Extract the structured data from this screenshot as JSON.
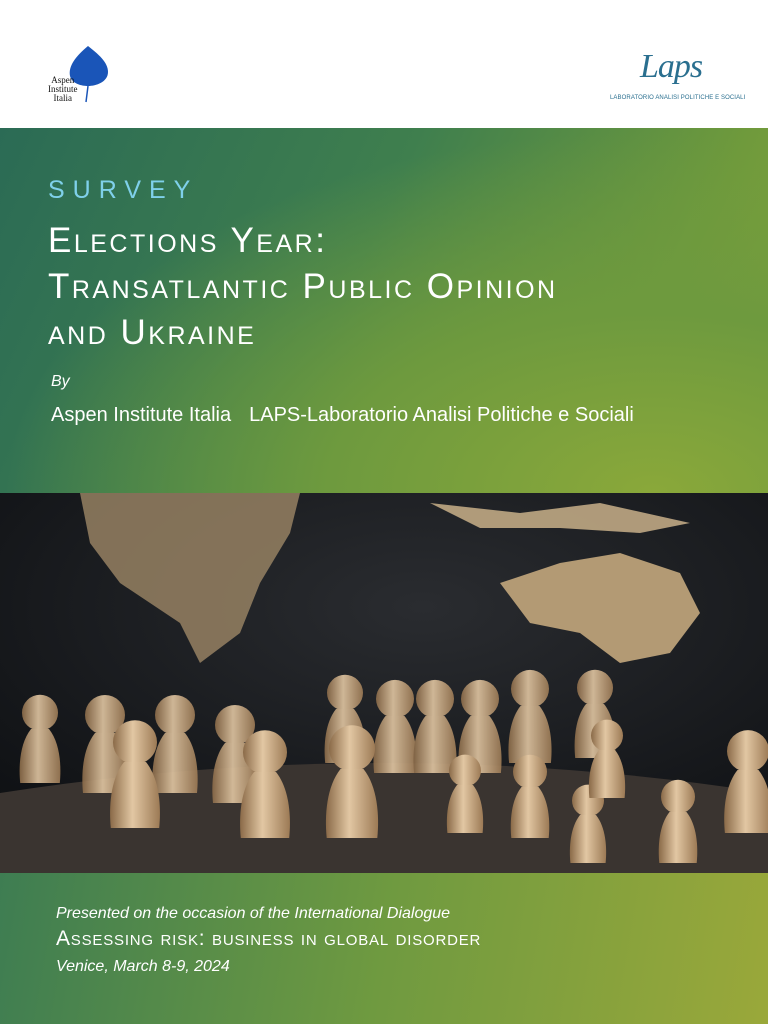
{
  "header": {
    "left_logo": [
      "Aspen",
      "Institute",
      "Italia"
    ],
    "right_logo": {
      "mark": "Laps",
      "caption": "LABORATORIO ANALISI POLITICHE E SOCIALI"
    }
  },
  "cover": {
    "kicker": "SURVEY",
    "title_lines": [
      "Elections Year:",
      "Transatlantic Public Opinion",
      "and Ukraine"
    ],
    "by": "By",
    "authors": [
      "Aspen Institute Italia",
      "LAPS-Laboratorio Analisi Politiche e Sociali"
    ]
  },
  "footer": {
    "lines": [
      "Presented on the occasion of the International Dialogue",
      "Assessing risk: business in global disorder",
      "Venice, March 8-9, 2024"
    ]
  }
}
